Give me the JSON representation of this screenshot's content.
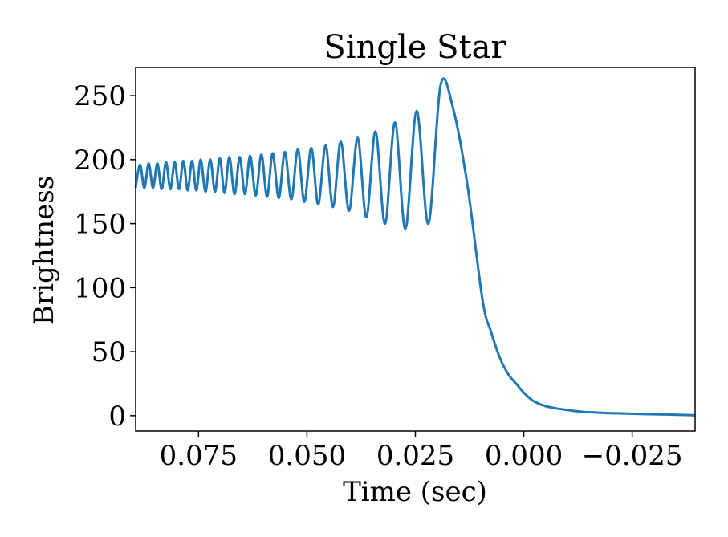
{
  "chart_data": {
    "type": "line",
    "title": "Single Star",
    "xlabel": "Time (sec)",
    "ylabel": "Brightness",
    "xlim": [
      0.0895,
      -0.0395
    ],
    "ylim": [
      -12,
      272
    ],
    "x_inverted": true,
    "xticks": [
      0.075,
      0.05,
      0.025,
      0.0,
      -0.025
    ],
    "xtick_labels": [
      "0.075",
      "0.050",
      "0.025",
      "0.000",
      "−0.025"
    ],
    "yticks": [
      0,
      50,
      100,
      150,
      200,
      250
    ],
    "ytick_labels": [
      "0",
      "50",
      "100",
      "150",
      "200",
      "250"
    ],
    "grid": false,
    "line_color": "#1f77b4",
    "series": [
      {
        "x": [
          0.0895,
          0.0885,
          0.0875,
          0.0865,
          0.0855,
          0.0845,
          0.0835,
          0.0825,
          0.0815,
          0.0805,
          0.0795,
          0.0785,
          0.0775,
          0.0765,
          0.0755,
          0.0745,
          0.0734,
          0.0723,
          0.0712,
          0.0701,
          0.069,
          0.0679,
          0.0667,
          0.0655,
          0.0643,
          0.0631,
          0.0618,
          0.0605,
          0.0592,
          0.0579,
          0.0565,
          0.0551,
          0.0536,
          0.0521,
          0.0506,
          0.049,
          0.0474,
          0.0457,
          0.044,
          0.0422,
          0.0403,
          0.0383,
          0.0363,
          0.0342,
          0.032,
          0.0297,
          0.0273,
          0.0247,
          0.022,
          0.0192,
          0.0163,
          0.013,
          0.0095,
          0.0075,
          0.0055,
          0.0035,
          0.0015,
          0.0,
          -0.002,
          -0.0045,
          -0.007,
          -0.01,
          -0.0135,
          -0.0165,
          -0.0195,
          -0.0225,
          -0.0255,
          -0.0285,
          -0.0315,
          -0.0345,
          -0.0375,
          -0.0395
        ],
        "y": [
          178,
          196,
          178,
          197,
          178,
          197,
          177,
          198,
          177,
          198,
          177,
          199,
          176,
          199,
          176,
          200,
          175,
          200,
          175,
          201,
          174,
          202,
          173,
          202,
          173,
          203,
          172,
          204,
          171,
          205,
          170,
          206,
          169,
          208,
          167,
          209,
          165,
          211,
          163,
          214,
          160,
          217,
          155,
          222,
          150,
          229,
          146,
          238,
          150,
          258,
          240,
          180,
          90,
          65,
          45,
          32,
          24,
          18,
          12,
          8,
          6,
          4.5,
          3,
          2.5,
          2,
          1.8,
          1.5,
          1.2,
          1.0,
          0.8,
          0.5,
          0.3
        ]
      }
    ]
  }
}
